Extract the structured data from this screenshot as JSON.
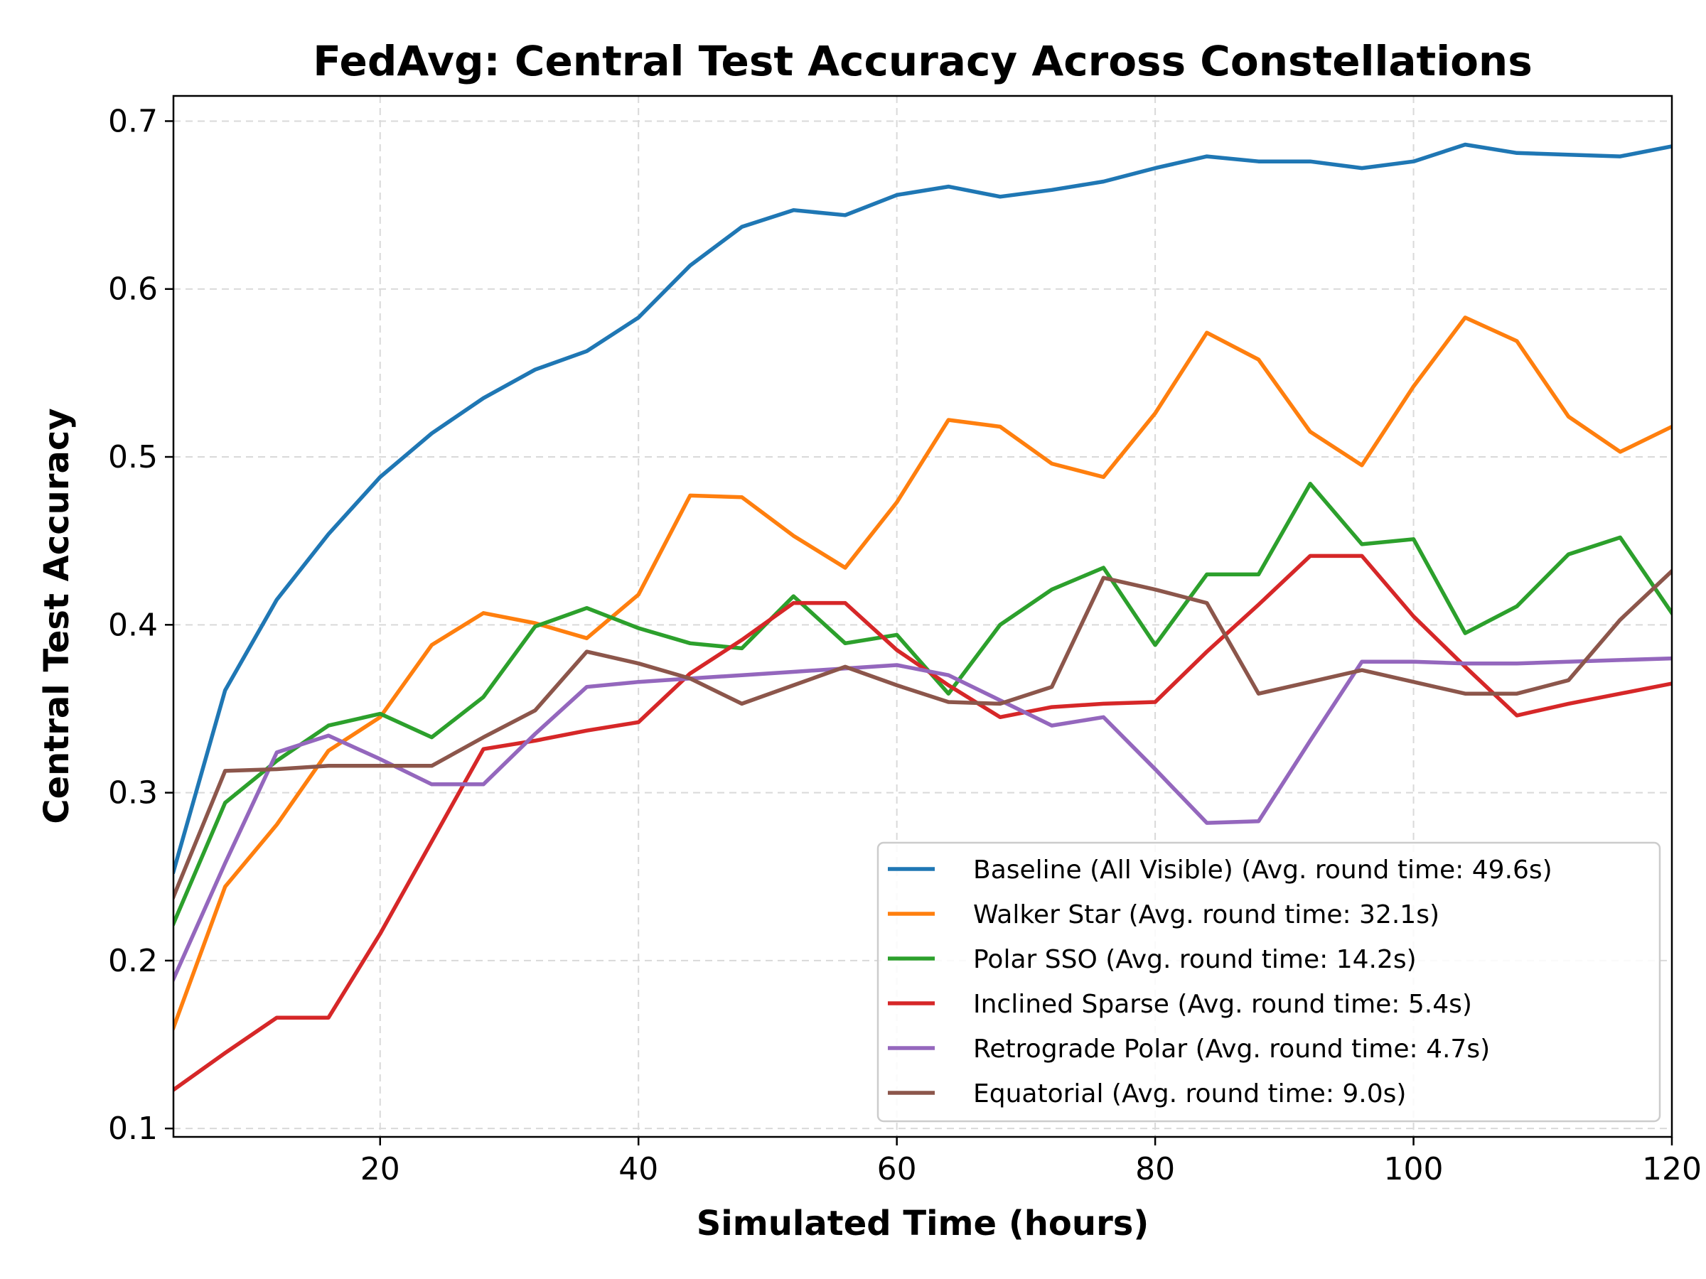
{
  "chart_data": {
    "type": "line",
    "title": "FedAvg: Central Test Accuracy Across Constellations",
    "xlabel": "Simulated Time (hours)",
    "ylabel": "Central Test Accuracy",
    "xlim": [
      4,
      120
    ],
    "ylim": [
      0.095,
      0.715
    ],
    "xticks": [
      20,
      40,
      60,
      80,
      100,
      120
    ],
    "yticks": [
      0.1,
      0.2,
      0.3,
      0.4,
      0.5,
      0.6,
      0.7
    ],
    "grid": true,
    "legend_position": "lower-right",
    "x": [
      4,
      8,
      12,
      16,
      20,
      24,
      28,
      32,
      36,
      40,
      44,
      48,
      52,
      56,
      60,
      64,
      68,
      72,
      76,
      80,
      84,
      88,
      92,
      96,
      100,
      104,
      108,
      112,
      116,
      120
    ],
    "series": [
      {
        "name": "Baseline (All Visible) (Avg. round time: 49.6s)",
        "color": "#1f77b4",
        "values": [
          0.253,
          0.361,
          0.415,
          0.454,
          0.488,
          0.514,
          0.535,
          0.552,
          0.563,
          0.583,
          0.614,
          0.637,
          0.647,
          0.644,
          0.656,
          0.661,
          0.655,
          0.659,
          0.664,
          0.672,
          0.679,
          0.676,
          0.676,
          0.672,
          0.676,
          0.686,
          0.681,
          0.68,
          0.679,
          0.685
        ]
      },
      {
        "name": "Walker Star (Avg. round time: 32.1s)",
        "color": "#ff7f0e",
        "values": [
          0.16,
          0.244,
          0.281,
          0.325,
          0.345,
          0.388,
          0.407,
          0.401,
          0.392,
          0.418,
          0.477,
          0.476,
          0.453,
          0.434,
          0.473,
          0.522,
          0.518,
          0.496,
          0.488,
          0.526,
          0.574,
          0.558,
          0.515,
          0.495,
          0.542,
          0.583,
          0.569,
          0.524,
          0.503,
          0.518
        ]
      },
      {
        "name": "Polar SSO (Avg. round time: 14.2s)",
        "color": "#2ca02c",
        "values": [
          0.222,
          0.294,
          0.319,
          0.34,
          0.347,
          0.333,
          0.357,
          0.399,
          0.41,
          0.398,
          0.389,
          0.386,
          0.417,
          0.389,
          0.394,
          0.359,
          0.4,
          0.421,
          0.434,
          0.388,
          0.43,
          0.43,
          0.484,
          0.448,
          0.451,
          0.395,
          0.411,
          0.442,
          0.452,
          0.407
        ]
      },
      {
        "name": "Inclined Sparse (Avg. round time: 5.4s)",
        "color": "#d62728",
        "values": [
          0.123,
          0.145,
          0.166,
          0.166,
          0.216,
          0.271,
          0.326,
          0.331,
          0.337,
          0.342,
          0.371,
          0.391,
          0.413,
          0.413,
          0.385,
          0.364,
          0.345,
          0.351,
          0.353,
          0.354,
          0.384,
          0.412,
          0.441,
          0.441,
          0.405,
          0.375,
          0.346,
          0.353,
          0.359,
          0.365
        ]
      },
      {
        "name": "Retrograde Polar (Avg. round time: 4.7s)",
        "color": "#9467bd",
        "values": [
          0.189,
          0.258,
          0.324,
          0.334,
          0.32,
          0.305,
          0.305,
          0.335,
          0.363,
          0.366,
          0.368,
          0.37,
          0.372,
          0.374,
          0.376,
          0.37,
          0.355,
          0.34,
          0.345,
          0.314,
          0.282,
          0.283,
          0.331,
          0.378,
          0.378,
          0.377,
          0.377,
          0.378,
          0.379,
          0.38
        ]
      },
      {
        "name": "Equatorial (Avg. round time: 9.0s)",
        "color": "#8c564b",
        "values": [
          0.238,
          0.313,
          0.314,
          0.316,
          0.316,
          0.316,
          0.333,
          0.349,
          0.384,
          0.377,
          0.368,
          0.353,
          0.364,
          0.375,
          0.364,
          0.354,
          0.353,
          0.363,
          0.428,
          0.421,
          0.413,
          0.359,
          0.366,
          0.373,
          0.366,
          0.359,
          0.359,
          0.367,
          0.403,
          0.432
        ]
      }
    ]
  }
}
